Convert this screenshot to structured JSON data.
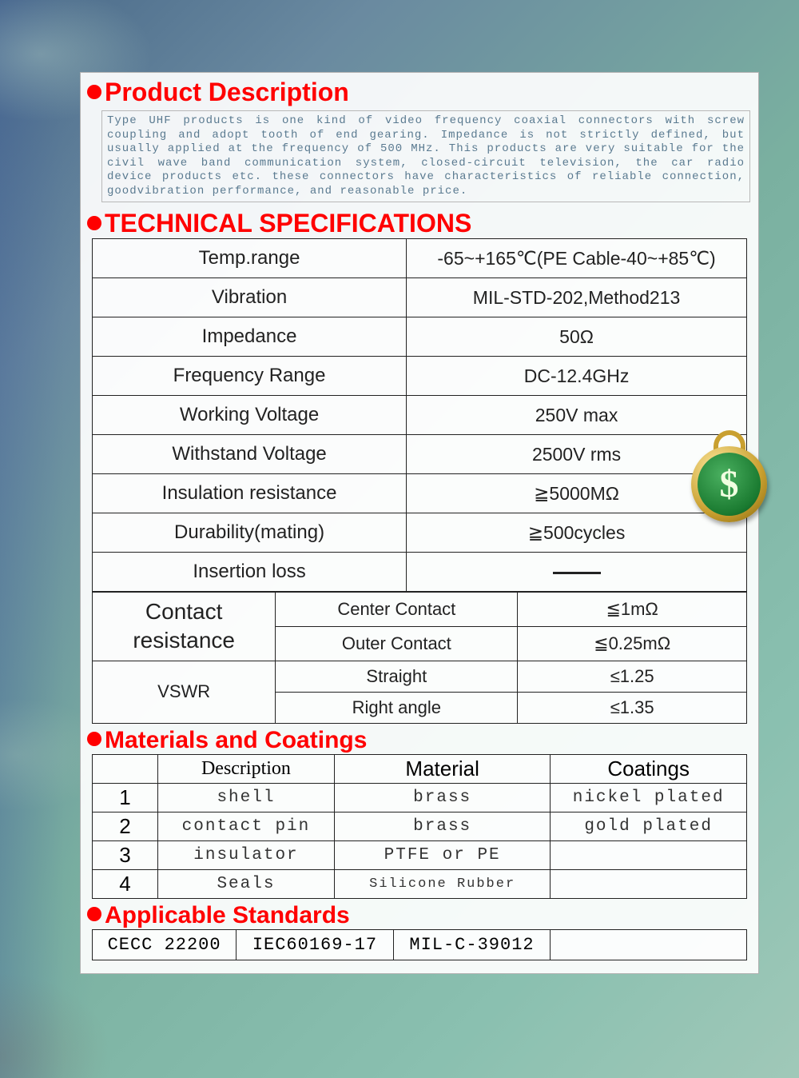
{
  "colors": {
    "heading": "#ff0000",
    "desc_text": "#5a7a90",
    "border": "#222222",
    "bg_sheet": "rgba(255,255,255,0.92)"
  },
  "sections": {
    "product": {
      "title": "Product Description",
      "text": "Type UHF products is one kind of video frequency coaxial connectors with screw coupling and adopt tooth of end gearing. Impedance is not strictly defined, but usually applied at the frequency of 500 MHz. This products are very suitable for the civil wave band communication system, closed-circuit television, the car radio device products etc. these connectors have characteristics of reliable connection, goodvibration performance, and reasonable price."
    },
    "tech": {
      "title": "TECHNICAL SPECIFICATIONS",
      "rows": [
        {
          "label": "Temp.range",
          "value": "-65~+165℃(PE Cable-40~+85℃)"
        },
        {
          "label": "Vibration",
          "value": "MIL-STD-202,Method213"
        },
        {
          "label": "Impedance",
          "value": "50Ω"
        },
        {
          "label": "Frequency Range",
          "value": "DC-12.4GHz"
        },
        {
          "label": "Working Voltage",
          "value": "250V  max"
        },
        {
          "label": "Withstand Voltage",
          "value": "2500V rms"
        },
        {
          "label": "Insulation resistance",
          "value": "≧5000MΩ"
        },
        {
          "label": "Durability(mating)",
          "value": "≧500cycles"
        },
        {
          "label": "Insertion loss",
          "value": ""
        }
      ],
      "contact": {
        "label": "Contact resistance",
        "rows": [
          {
            "k": "Center Contact",
            "v": "≦1mΩ"
          },
          {
            "k": "Outer Contact",
            "v": "≦0.25mΩ"
          }
        ]
      },
      "vswr": {
        "label": "VSWR",
        "rows": [
          {
            "k": "Straight",
            "v": "≤1.25"
          },
          {
            "k": "Right angle",
            "v": "≤1.35"
          }
        ]
      }
    },
    "materials": {
      "title": "Materials and Coatings",
      "headers": {
        "num": "",
        "desc": "Description",
        "mat": "Material",
        "coat": "Coatings"
      },
      "rows": [
        {
          "n": "1",
          "desc": "shell",
          "mat": "brass",
          "coat": "nickel plated"
        },
        {
          "n": "2",
          "desc": "contact pin",
          "mat": "brass",
          "coat": "gold plated"
        },
        {
          "n": "3",
          "desc": "insulator",
          "mat": "PTFE or PE",
          "coat": ""
        },
        {
          "n": "4",
          "desc": "Seals",
          "mat": "Silicone Rubber",
          "coat": ""
        }
      ]
    },
    "standards": {
      "title": "Applicable Standards",
      "items": [
        "CECC 22200",
        "IEC60169-17",
        "MIL-C-39012",
        ""
      ]
    }
  },
  "medallion": {
    "glyph": "$"
  }
}
